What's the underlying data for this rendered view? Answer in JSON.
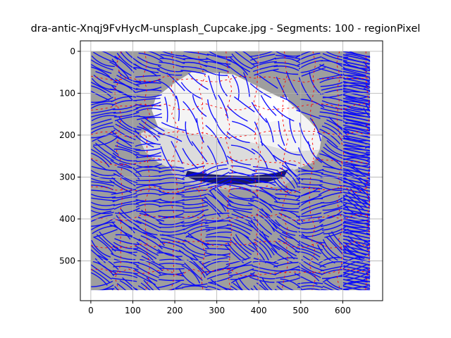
{
  "title": "dra-antic-Xnqj9FvHycM-unsplash_Cupcake.jpg - Segments: 100 - regionPixel",
  "chart_data": {
    "type": "heatmap",
    "title": "dra-antic-Xnqj9FvHycM-unsplash_Cupcake.jpg - Segments: 100 - regionPixel",
    "xlabel": "",
    "ylabel": "",
    "xlim": [
      -25,
      695
    ],
    "ylim": [
      595,
      -25
    ],
    "y_inverted": true,
    "x_ticks": [
      0,
      100,
      200,
      300,
      400,
      500,
      600
    ],
    "y_ticks": [
      0,
      100,
      200,
      300,
      400,
      500
    ],
    "grid": true,
    "image_extent": [
      0,
      665,
      570,
      0
    ],
    "segments": 100,
    "colors": {
      "background_region": "#9e9e9e",
      "cake_light": "#f4f4f4",
      "cake_mid": "#dcdcdc",
      "plate": "#bdbdbd",
      "dark_band": "#1a1a6e",
      "flow_lines": "#0000ff",
      "segment_boundaries": "#ff0000",
      "grid": "#b0b0b0"
    },
    "cake_regions": [
      {
        "shape": "cake-top",
        "color": "#f4f4f4",
        "points": [
          [
            155,
            110
          ],
          [
            200,
            75
          ],
          [
            240,
            50
          ],
          [
            300,
            52
          ],
          [
            340,
            55
          ],
          [
            410,
            90
          ],
          [
            470,
            120
          ],
          [
            520,
            165
          ],
          [
            550,
            200
          ],
          [
            545,
            235
          ],
          [
            480,
            240
          ],
          [
            420,
            225
          ],
          [
            340,
            210
          ],
          [
            260,
            200
          ],
          [
            210,
            190
          ],
          [
            160,
            180
          ],
          [
            145,
            140
          ]
        ]
      },
      {
        "shape": "cake-white-square",
        "color": "#ffffff",
        "points": [
          [
            395,
            105
          ],
          [
            470,
            110
          ],
          [
            470,
            160
          ],
          [
            420,
            170
          ],
          [
            392,
            150
          ]
        ]
      },
      {
        "shape": "cake-base",
        "color": "#dcdcdc",
        "points": [
          [
            120,
            195
          ],
          [
            160,
            180
          ],
          [
            210,
            190
          ],
          [
            260,
            200
          ],
          [
            340,
            210
          ],
          [
            420,
            225
          ],
          [
            480,
            240
          ],
          [
            545,
            235
          ],
          [
            530,
            265
          ],
          [
            480,
            285
          ],
          [
            420,
            298
          ],
          [
            340,
            305
          ],
          [
            260,
            300
          ],
          [
            200,
            285
          ],
          [
            160,
            265
          ],
          [
            130,
            240
          ],
          [
            118,
            215
          ]
        ]
      },
      {
        "shape": "plate",
        "color": "#bdbdbd",
        "points": [
          [
            195,
            270
          ],
          [
            240,
            290
          ],
          [
            300,
            300
          ],
          [
            360,
            305
          ],
          [
            420,
            295
          ],
          [
            480,
            280
          ],
          [
            500,
            295
          ],
          [
            460,
            320
          ],
          [
            400,
            330
          ],
          [
            320,
            330
          ],
          [
            250,
            322
          ],
          [
            205,
            305
          ],
          [
            190,
            285
          ]
        ]
      },
      {
        "shape": "dark-band",
        "color": "#1a1a6e",
        "points": [
          [
            230,
            285
          ],
          [
            270,
            292
          ],
          [
            320,
            296
          ],
          [
            380,
            298
          ],
          [
            440,
            290
          ],
          [
            470,
            282
          ],
          [
            460,
            300
          ],
          [
            420,
            312
          ],
          [
            360,
            318
          ],
          [
            300,
            316
          ],
          [
            250,
            308
          ],
          [
            225,
            298
          ]
        ]
      }
    ]
  }
}
